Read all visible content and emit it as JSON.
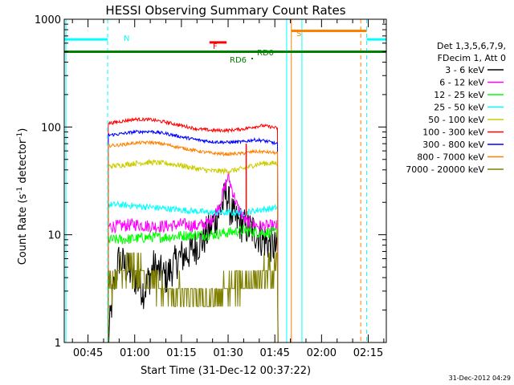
{
  "chart_data": {
    "type": "line",
    "title": "HESSI Observing Summary Count Rates",
    "xlabel": "Start Time (31-Dec-12 00:37:22)",
    "ylabel": "Count Rate (s⁻¹ detector⁻¹)",
    "ylabel_parts": {
      "a": "Count Rate (s",
      "sup1": "-1",
      "b": " detector",
      "sup2": "-1",
      "c": ")"
    },
    "x_ticks": [
      "00:45",
      "01:00",
      "01:15",
      "01:30",
      "01:45",
      "02:00",
      "02:15"
    ],
    "x_tick_minutes": [
      45,
      60,
      75,
      90,
      105,
      120,
      135
    ],
    "y_scale": "log",
    "y_ticks": [
      "1",
      "10",
      "100",
      "1000"
    ],
    "y_tick_values": [
      1,
      10,
      100,
      1000
    ],
    "xlim_minutes": [
      37.37,
      140.8
    ],
    "ylim": [
      1,
      1000
    ],
    "legend_header": [
      "Det 1,3,5,6,7,9,",
      "FDecim 1, Att 0"
    ],
    "legend_position": "right",
    "series": [
      {
        "name": "3 - 6 keV",
        "color": "#000000",
        "points": [
          [
            51.5,
            1
          ],
          [
            53,
            3
          ],
          [
            55,
            6
          ],
          [
            57,
            5
          ],
          [
            60,
            4
          ],
          [
            63,
            3
          ],
          [
            66,
            5
          ],
          [
            70,
            4
          ],
          [
            74,
            6
          ],
          [
            78,
            7
          ],
          [
            82,
            9
          ],
          [
            86,
            14
          ],
          [
            88,
            18
          ],
          [
            89.5,
            25
          ],
          [
            90.5,
            18
          ],
          [
            92,
            14
          ],
          [
            95,
            12
          ],
          [
            98,
            11
          ],
          [
            101,
            9
          ],
          [
            104,
            8
          ],
          [
            106,
            7
          ]
        ]
      },
      {
        "name": "6 - 12 keV",
        "color": "#ff00ff",
        "points": [
          [
            51.5,
            12
          ],
          [
            55,
            12
          ],
          [
            60,
            12.5
          ],
          [
            65,
            12
          ],
          [
            70,
            12
          ],
          [
            75,
            12.5
          ],
          [
            80,
            12
          ],
          [
            84,
            13
          ],
          [
            87,
            18
          ],
          [
            89,
            28
          ],
          [
            90,
            35
          ],
          [
            91,
            28
          ],
          [
            93,
            18
          ],
          [
            96,
            13
          ],
          [
            100,
            12
          ],
          [
            104,
            12
          ],
          [
            106,
            12
          ]
        ]
      },
      {
        "name": "12 - 25 keV",
        "color": "#00ff00",
        "points": [
          [
            51.5,
            9
          ],
          [
            55,
            9
          ],
          [
            60,
            9.2
          ],
          [
            65,
            9.5
          ],
          [
            70,
            9.5
          ],
          [
            75,
            9.8
          ],
          [
            80,
            10
          ],
          [
            85,
            10
          ],
          [
            90,
            10.5
          ],
          [
            95,
            11
          ],
          [
            100,
            10.5
          ],
          [
            104,
            10.5
          ],
          [
            106,
            10.5
          ]
        ]
      },
      {
        "name": "25 - 50 keV",
        "color": "#00ffff",
        "points": [
          [
            51.5,
            19
          ],
          [
            55,
            19
          ],
          [
            60,
            18.5
          ],
          [
            65,
            18
          ],
          [
            70,
            17.5
          ],
          [
            75,
            17
          ],
          [
            80,
            16.5
          ],
          [
            85,
            16
          ],
          [
            90,
            16
          ],
          [
            95,
            16
          ],
          [
            100,
            17
          ],
          [
            104,
            17.5
          ],
          [
            106,
            18
          ]
        ]
      },
      {
        "name": "50 - 100 keV",
        "color": "#cccc00",
        "points": [
          [
            51.5,
            43
          ],
          [
            55,
            44
          ],
          [
            60,
            46
          ],
          [
            65,
            47
          ],
          [
            70,
            46
          ],
          [
            75,
            44
          ],
          [
            80,
            41
          ],
          [
            85,
            39
          ],
          [
            90,
            39
          ],
          [
            95,
            41
          ],
          [
            98,
            44
          ],
          [
            101,
            46
          ],
          [
            104,
            46
          ],
          [
            106,
            46
          ]
        ]
      },
      {
        "name": "100 - 300 keV",
        "color": "#ff0000",
        "points": [
          [
            51.5,
            108
          ],
          [
            55,
            112
          ],
          [
            60,
            118
          ],
          [
            65,
            117
          ],
          [
            70,
            111
          ],
          [
            75,
            103
          ],
          [
            80,
            96
          ],
          [
            85,
            93
          ],
          [
            90,
            93
          ],
          [
            95,
            96
          ],
          [
            98,
            100
          ],
          [
            101,
            103
          ],
          [
            104,
            100
          ],
          [
            106,
            97
          ]
        ]
      },
      {
        "name": "300 - 800 keV",
        "color": "#0000ff",
        "points": [
          [
            51.5,
            84
          ],
          [
            55,
            86
          ],
          [
            60,
            90
          ],
          [
            65,
            91
          ],
          [
            70,
            87
          ],
          [
            75,
            81
          ],
          [
            80,
            76
          ],
          [
            85,
            73
          ],
          [
            90,
            72
          ],
          [
            95,
            73
          ],
          [
            98,
            76
          ],
          [
            101,
            75
          ],
          [
            104,
            72
          ],
          [
            106,
            69
          ]
        ]
      },
      {
        "name": "800 - 7000 keV",
        "color": "#ff8000",
        "points": [
          [
            51.5,
            67
          ],
          [
            55,
            68
          ],
          [
            60,
            71
          ],
          [
            65,
            72
          ],
          [
            70,
            69
          ],
          [
            75,
            64
          ],
          [
            80,
            60
          ],
          [
            85,
            57
          ],
          [
            90,
            56
          ],
          [
            95,
            57
          ],
          [
            98,
            59
          ],
          [
            101,
            59
          ],
          [
            104,
            58
          ],
          [
            106,
            57
          ]
        ]
      },
      {
        "name": "7000 - 20000 keV",
        "color": "#808000",
        "points": [
          [
            51.5,
            3
          ],
          [
            55,
            4
          ],
          [
            60,
            5
          ],
          [
            63,
            4
          ],
          [
            66,
            3.5
          ],
          [
            70,
            3
          ],
          [
            74,
            2.8
          ],
          [
            78,
            2.6
          ],
          [
            82,
            2.5
          ],
          [
            86,
            2.6
          ],
          [
            90,
            3
          ],
          [
            94,
            3.5
          ],
          [
            98,
            4
          ],
          [
            102,
            4.2
          ],
          [
            106,
            4.5
          ]
        ]
      }
    ],
    "annotations": {
      "N": "N",
      "S": "S",
      "F": "F",
      "RD6": "RD6",
      "RD0": "RD0"
    },
    "interval_bars": [
      {
        "label": "N",
        "color": "#00ffff",
        "from": 37.37,
        "to": 51.3,
        "value": 650
      },
      {
        "label": "S",
        "color": "#ff8000",
        "from": 110.3,
        "to": 134.5,
        "value": 780
      },
      {
        "label": "N",
        "color": "#00ffff",
        "from": 134.5,
        "to": 140.8,
        "value": 650
      },
      {
        "label": "RD",
        "color": "#008000",
        "from": 37.37,
        "to": 140.8,
        "value": 500
      },
      {
        "label": "F",
        "color": "#ff0000",
        "from": 84,
        "to": 89.5,
        "value": 610
      }
    ],
    "vertical_markers": [
      {
        "color": "#00ffff",
        "style": "solid",
        "minute": 37.9
      },
      {
        "color": "#00ffff",
        "style": "dashed",
        "minute": 51.3
      },
      {
        "color": "#00ffff",
        "style": "solid",
        "minute": 108.8
      },
      {
        "color": "#ff8000",
        "style": "solid",
        "minute": 110.3
      },
      {
        "color": "#00ffff",
        "style": "solid",
        "minute": 113.7
      },
      {
        "color": "#ff8000",
        "style": "dashed",
        "minute": 132.6
      },
      {
        "color": "#00ffff",
        "style": "dashed",
        "minute": 134.5
      }
    ],
    "grid": false
  },
  "footer": {
    "timestamp": "31-Dec-2012 04:29"
  }
}
